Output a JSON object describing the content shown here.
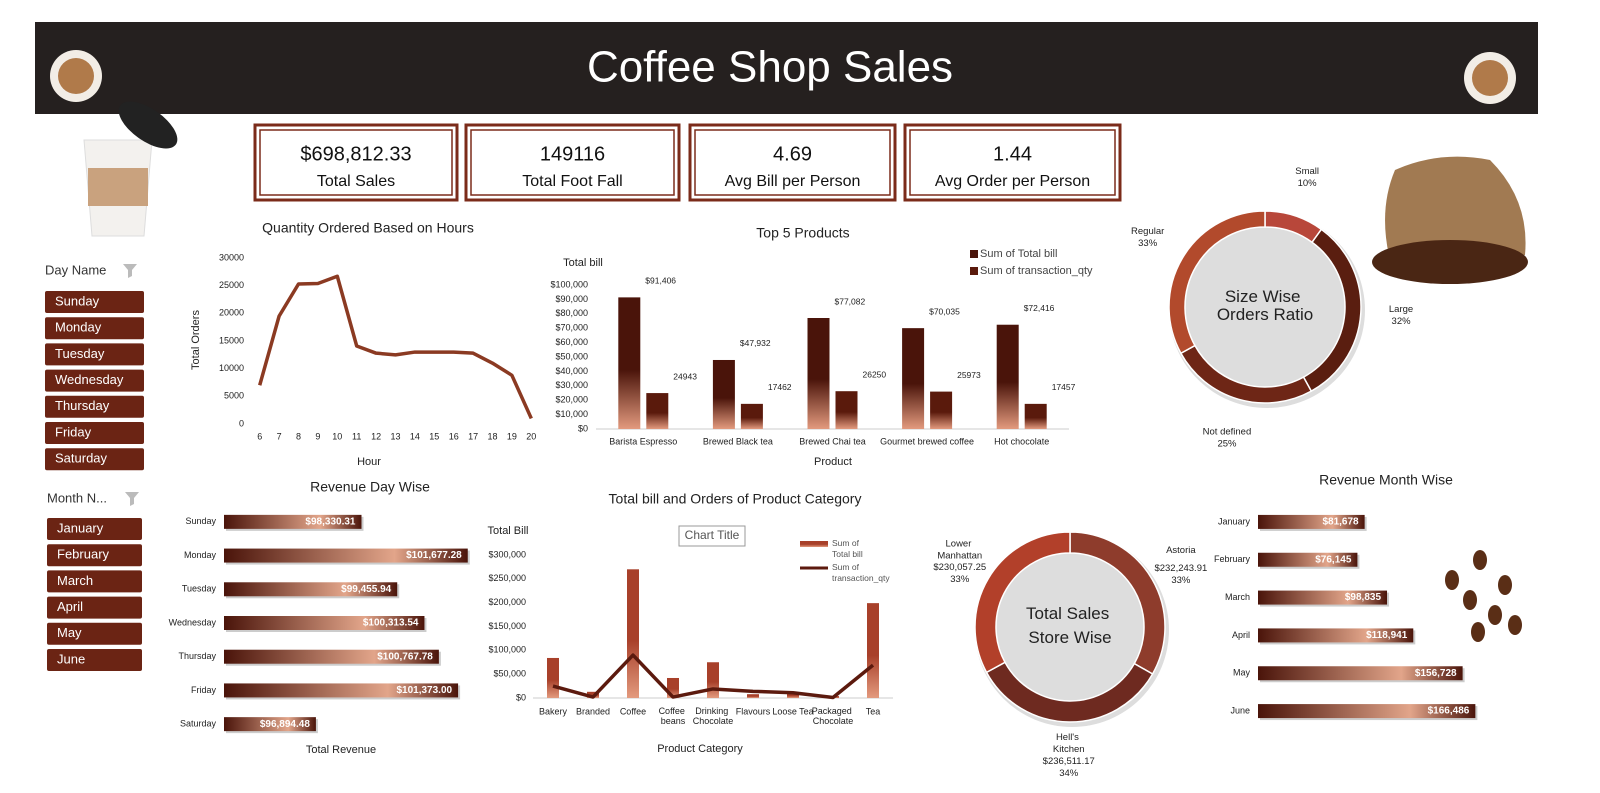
{
  "header": {
    "title": "Coffee Shop Sales"
  },
  "kpis": [
    {
      "value": "$698,812.33",
      "label": "Total Sales"
    },
    {
      "value": "149116",
      "label": "Total Foot Fall"
    },
    {
      "value": "4.69",
      "label": "Avg Bill per Person"
    },
    {
      "value": "1.44",
      "label": "Avg Order per Person"
    }
  ],
  "slicers": [
    {
      "title": "Day Name",
      "items": [
        "Sunday",
        "Monday",
        "Tuesday",
        "Wednesday",
        "Thursday",
        "Friday",
        "Saturday"
      ]
    },
    {
      "title": "Month N...",
      "items": [
        "January",
        "February",
        "March",
        "April",
        "May",
        "June"
      ]
    }
  ],
  "chart_data": [
    {
      "type": "line",
      "title": "Quantity Ordered Based on Hours",
      "x_label": "Hour",
      "y_label": "Total Orders",
      "x": [
        6,
        7,
        8,
        9,
        10,
        11,
        12,
        13,
        14,
        15,
        16,
        17,
        18,
        19,
        20
      ],
      "values": [
        7000,
        19500,
        25300,
        25400,
        26700,
        14100,
        12800,
        12500,
        13000,
        13000,
        13000,
        12800,
        11000,
        8800,
        1000
      ],
      "color": "#8b3a22",
      "xlim": [
        5.5,
        20.5
      ],
      "xticks": [
        6,
        7,
        8,
        9,
        10,
        11,
        12,
        13,
        14,
        15,
        16,
        17,
        18,
        19,
        20
      ],
      "ylim": [
        0,
        30000
      ],
      "yticks": [
        0,
        5000,
        10000,
        15000,
        20000,
        25000,
        30000
      ]
    },
    {
      "type": "bar",
      "title": "Top 5 Products",
      "y_label": "Total bill",
      "x_label": "Product",
      "categories": [
        "Barista Espresso",
        "Brewed Black tea",
        "Brewed Chai tea",
        "Gourmet brewed coffee",
        "Hot chocolate"
      ],
      "series": [
        {
          "name": "Sum of Total bill",
          "color": "#4a140a",
          "values": [
            91406,
            47932,
            77082,
            70035,
            72416
          ],
          "value_labels": [
            "$91,406",
            "$47,932",
            "$77,082",
            "$70,035",
            "$72,416"
          ]
        },
        {
          "name": "Sum of transaction_qty",
          "color": "#5a1a0c",
          "values": [
            24943,
            17462,
            26250,
            25973,
            17457
          ]
        }
      ],
      "ylim": [
        0,
        100000
      ],
      "yticks": [
        {
          "value": 0,
          "label": "$0"
        },
        {
          "value": 10000,
          "label": "$10,000"
        },
        {
          "value": 20000,
          "label": "$20,000"
        },
        {
          "value": 30000,
          "label": "$30,000"
        },
        {
          "value": 40000,
          "label": "$40,000"
        },
        {
          "value": 50000,
          "label": "$50,000"
        },
        {
          "value": 60000,
          "label": "$60,000"
        },
        {
          "value": 70000,
          "label": "$70,000"
        },
        {
          "value": 80000,
          "label": "$80,000"
        },
        {
          "value": 90000,
          "label": "$90,000"
        },
        {
          "value": 100000,
          "label": "$100,000"
        }
      ],
      "legend": "top-right"
    },
    {
      "type": "donut",
      "title": "Size Wise Orders Ratio",
      "categories": [
        "Small",
        "Large",
        "Not defined",
        "Regular"
      ],
      "values": [
        10,
        32,
        25,
        33
      ],
      "value_labels": [
        "10%",
        "32%",
        "25%",
        "33%"
      ],
      "colors": [
        "#b8473a",
        "#5a1e10",
        "#6e2616",
        "#b24a2c"
      ]
    },
    {
      "type": "hbar",
      "title": "Revenue Day Wise",
      "x_label": "Total Revenue",
      "categories": [
        "Sunday",
        "Monday",
        "Tuesday",
        "Wednesday",
        "Thursday",
        "Friday",
        "Saturday"
      ],
      "values": [
        98330.31,
        101677.28,
        99455.94,
        100313.54,
        100767.78,
        101373.0,
        96894.48
      ],
      "value_labels": [
        "$98,330.31",
        "$101,677.28",
        "$99,455.94",
        "$100,313.54",
        "$100,767.78",
        "$101,373.00",
        "$96,894.48"
      ],
      "color": "#4a140a",
      "xlim": [
        94000,
        102000
      ]
    },
    {
      "type": "combo",
      "title": "Total bill and Orders of Product Category",
      "annotation": "Chart Title",
      "y_label": "Total Bill",
      "x_label": "Product Category",
      "categories": [
        "Bakery",
        "Branded",
        "Coffee",
        "Coffee beans",
        "Drinking Chocolate",
        "Flavours",
        "Loose Tea",
        "Packaged Chocolate",
        "Tea"
      ],
      "series": [
        {
          "name": "Sum of Total bill",
          "kind": "bar",
          "color": "#a8402a",
          "values": [
            84000,
            13000,
            270000,
            42000,
            75000,
            8000,
            11000,
            4000,
            199000
          ]
        },
        {
          "name": "Sum of transaction_qty",
          "kind": "line",
          "color": "#5c1a0e",
          "values": [
            25000,
            2000,
            90000,
            2000,
            19000,
            14000,
            11000,
            1000,
            69000
          ]
        }
      ],
      "ylim": [
        0,
        300000
      ],
      "yticks": [
        {
          "value": 0,
          "label": "$0"
        },
        {
          "value": 50000,
          "label": "$50,000"
        },
        {
          "value": 100000,
          "label": "$100,000"
        },
        {
          "value": 150000,
          "label": "$150,000"
        },
        {
          "value": 200000,
          "label": "$200,000"
        },
        {
          "value": 250000,
          "label": "$250,000"
        },
        {
          "value": 300000,
          "label": "$300,000"
        }
      ],
      "legend": "right"
    },
    {
      "type": "donut",
      "title": "Total Sales Store Wise",
      "categories": [
        "Astoria",
        "Hell's Kitchen",
        "Lower Manhattan"
      ],
      "values": [
        232243.91,
        236511.17,
        230057.25
      ],
      "value_labels": [
        "$232,243.91",
        "$236,511.17",
        "$230,057.25"
      ],
      "percent_labels": [
        "33%",
        "34%",
        "33%"
      ],
      "colors": [
        "#8e3c2c",
        "#6e2a20",
        "#b2402a"
      ]
    },
    {
      "type": "hbar",
      "title": "Revenue Month Wise",
      "categories": [
        "January",
        "February",
        "March",
        "April",
        "May",
        "June"
      ],
      "values": [
        81678,
        76145,
        98835,
        118941,
        156728,
        166486
      ],
      "value_labels": [
        "$81,678",
        "$76,145",
        "$98,835",
        "$118,941",
        "$156,728",
        "$166,486"
      ],
      "color": "#4a140a",
      "xlim": [
        0,
        180000
      ]
    }
  ]
}
